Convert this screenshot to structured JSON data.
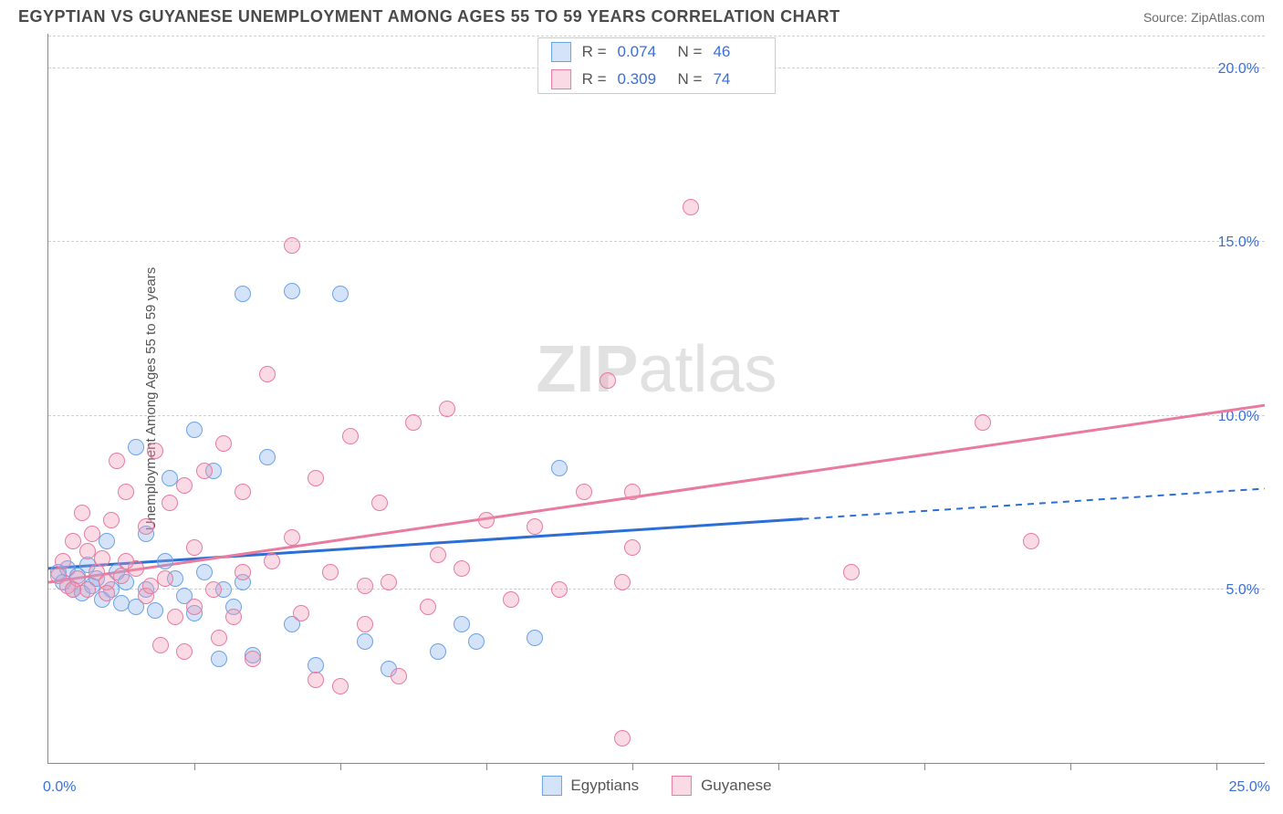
{
  "header": {
    "title": "EGYPTIAN VS GUYANESE UNEMPLOYMENT AMONG AGES 55 TO 59 YEARS CORRELATION CHART",
    "source": "Source: ZipAtlas.com"
  },
  "chart": {
    "type": "scatter",
    "y_axis_label": "Unemployment Among Ages 55 to 59 years",
    "watermark": {
      "part1": "ZIP",
      "part2": "atlas"
    },
    "background_color": "#ffffff",
    "grid_color": "#d0d0d0",
    "axis_color": "#888888",
    "value_color": "#3b6fd6",
    "xlim": [
      0,
      25
    ],
    "ylim": [
      0,
      21
    ],
    "x_ticks": [
      0,
      3,
      6,
      9,
      12,
      15,
      18,
      21,
      24
    ],
    "x_tick_labels": {
      "min": "0.0%",
      "max": "25.0%"
    },
    "y_gridlines": [
      5,
      10,
      15,
      20
    ],
    "y_tick_labels": [
      "5.0%",
      "10.0%",
      "15.0%",
      "20.0%"
    ],
    "series": [
      {
        "id": "egyptians",
        "label": "Egyptians",
        "stroke": "#6aa3e8",
        "fill": "rgba(131,176,235,0.35)",
        "r_label": "R =",
        "r_value": "0.074",
        "n_label": "N =",
        "n_value": "46",
        "regression": {
          "y_start": 5.6,
          "y_end": 7.9,
          "solid_end_x": 15.5
        },
        "points": [
          [
            0.2,
            5.5
          ],
          [
            0.3,
            5.2
          ],
          [
            0.4,
            5.6
          ],
          [
            0.5,
            5.0
          ],
          [
            0.6,
            5.4
          ],
          [
            0.7,
            4.9
          ],
          [
            0.8,
            5.7
          ],
          [
            0.9,
            5.1
          ],
          [
            1.0,
            5.3
          ],
          [
            1.1,
            4.7
          ],
          [
            1.2,
            6.4
          ],
          [
            1.3,
            5.0
          ],
          [
            1.4,
            5.5
          ],
          [
            1.5,
            4.6
          ],
          [
            1.6,
            5.2
          ],
          [
            1.8,
            4.5
          ],
          [
            1.8,
            9.1
          ],
          [
            2.0,
            6.6
          ],
          [
            2.0,
            5.0
          ],
          [
            2.2,
            4.4
          ],
          [
            2.4,
            5.8
          ],
          [
            2.5,
            8.2
          ],
          [
            2.6,
            5.3
          ],
          [
            2.8,
            4.8
          ],
          [
            3.0,
            9.6
          ],
          [
            3.0,
            4.3
          ],
          [
            3.2,
            5.5
          ],
          [
            3.4,
            8.4
          ],
          [
            3.5,
            3.0
          ],
          [
            3.6,
            5.0
          ],
          [
            3.8,
            4.5
          ],
          [
            4.0,
            5.2
          ],
          [
            4.0,
            13.5
          ],
          [
            4.2,
            3.1
          ],
          [
            4.5,
            8.8
          ],
          [
            5.0,
            13.6
          ],
          [
            5.0,
            4.0
          ],
          [
            5.5,
            2.8
          ],
          [
            6.0,
            13.5
          ],
          [
            6.5,
            3.5
          ],
          [
            7.0,
            2.7
          ],
          [
            8.0,
            3.2
          ],
          [
            8.5,
            4.0
          ],
          [
            8.8,
            3.5
          ],
          [
            10.0,
            3.6
          ],
          [
            10.5,
            8.5
          ]
        ]
      },
      {
        "id": "guyanese",
        "label": "Guyanese",
        "stroke": "#e87b9e",
        "fill": "rgba(240,153,180,0.35)",
        "r_label": "R =",
        "r_value": "0.309",
        "n_label": "N =",
        "n_value": "74",
        "regression": {
          "y_start": 5.2,
          "y_end": 10.3,
          "solid_end_x": 25
        },
        "points": [
          [
            0.2,
            5.4
          ],
          [
            0.3,
            5.8
          ],
          [
            0.4,
            5.1
          ],
          [
            0.5,
            6.4
          ],
          [
            0.6,
            5.3
          ],
          [
            0.7,
            7.2
          ],
          [
            0.8,
            5.0
          ],
          [
            0.9,
            6.6
          ],
          [
            1.0,
            5.5
          ],
          [
            1.1,
            5.9
          ],
          [
            1.2,
            5.2
          ],
          [
            1.3,
            7.0
          ],
          [
            1.4,
            8.7
          ],
          [
            1.5,
            5.4
          ],
          [
            1.6,
            7.8
          ],
          [
            1.8,
            5.6
          ],
          [
            2.0,
            6.8
          ],
          [
            2.0,
            4.8
          ],
          [
            2.2,
            9.0
          ],
          [
            2.3,
            3.4
          ],
          [
            2.4,
            5.3
          ],
          [
            2.5,
            7.5
          ],
          [
            2.6,
            4.2
          ],
          [
            2.8,
            8.0
          ],
          [
            2.8,
            3.2
          ],
          [
            3.0,
            6.2
          ],
          [
            3.0,
            4.5
          ],
          [
            3.2,
            8.4
          ],
          [
            3.4,
            5.0
          ],
          [
            3.5,
            3.6
          ],
          [
            3.6,
            9.2
          ],
          [
            3.8,
            4.2
          ],
          [
            4.0,
            7.8
          ],
          [
            4.0,
            5.5
          ],
          [
            4.2,
            3.0
          ],
          [
            4.5,
            11.2
          ],
          [
            4.6,
            5.8
          ],
          [
            5.0,
            14.9
          ],
          [
            5.0,
            6.5
          ],
          [
            5.2,
            4.3
          ],
          [
            5.5,
            8.2
          ],
          [
            5.5,
            2.4
          ],
          [
            5.8,
            5.5
          ],
          [
            6.0,
            2.2
          ],
          [
            6.2,
            9.4
          ],
          [
            6.5,
            5.1
          ],
          [
            6.5,
            4.0
          ],
          [
            6.8,
            7.5
          ],
          [
            7.0,
            5.2
          ],
          [
            7.2,
            2.5
          ],
          [
            7.5,
            9.8
          ],
          [
            7.8,
            4.5
          ],
          [
            8.0,
            6.0
          ],
          [
            8.2,
            10.2
          ],
          [
            8.5,
            5.6
          ],
          [
            9.0,
            7.0
          ],
          [
            9.5,
            4.7
          ],
          [
            10.0,
            6.8
          ],
          [
            10.5,
            5.0
          ],
          [
            11.0,
            7.8
          ],
          [
            11.5,
            11.0
          ],
          [
            11.8,
            0.7
          ],
          [
            12.0,
            6.2
          ],
          [
            11.8,
            5.2
          ],
          [
            12.0,
            7.8
          ],
          [
            13.2,
            16.0
          ],
          [
            16.5,
            5.5
          ],
          [
            19.2,
            9.8
          ],
          [
            20.2,
            6.4
          ],
          [
            0.5,
            5.0
          ],
          [
            0.8,
            6.1
          ],
          [
            1.2,
            4.9
          ],
          [
            1.6,
            5.8
          ],
          [
            2.1,
            5.1
          ]
        ]
      }
    ]
  }
}
